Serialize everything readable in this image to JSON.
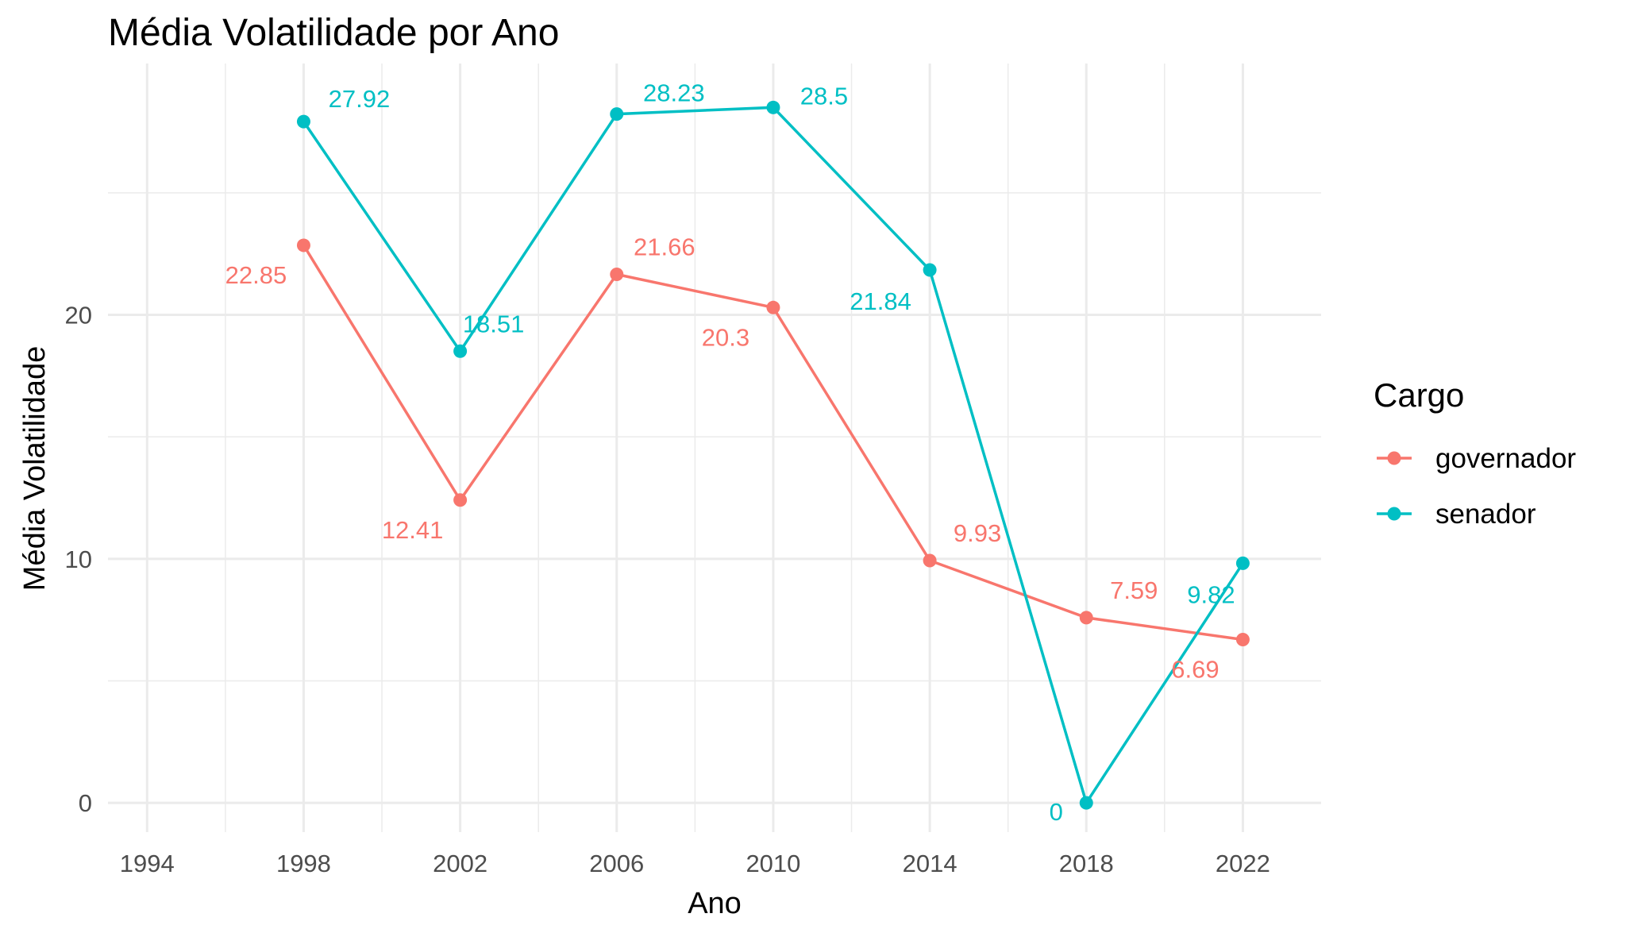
{
  "chart_data": {
    "type": "line",
    "title": "Média Volatilidade por Ano",
    "xlabel": "Ano",
    "ylabel": "Média Volatilidade",
    "x_ticks": [
      "1994",
      "1998",
      "2002",
      "2006",
      "2010",
      "2014",
      "2018",
      "2022"
    ],
    "y_ticks": [
      "0",
      "10",
      "20"
    ],
    "xlim": [
      1993,
      2024
    ],
    "ylim": [
      -1.2,
      30.3
    ],
    "grid": true,
    "legend": {
      "title": "Cargo",
      "placement": "right"
    },
    "series": [
      {
        "name": "governador",
        "color": "#F8766D",
        "x": [
          1998,
          2002,
          2006,
          2010,
          2014,
          2018,
          2022
        ],
        "values": [
          22.85,
          12.41,
          21.66,
          20.3,
          9.93,
          7.59,
          6.69
        ],
        "labels": [
          "22.85",
          "12.41",
          "21.66",
          "20.3",
          "9.93",
          "7.59",
          "6.69"
        ]
      },
      {
        "name": "senador",
        "color": "#00BFC4",
        "x": [
          1998,
          2002,
          2006,
          2010,
          2014,
          2018,
          2022
        ],
        "values": [
          27.92,
          18.51,
          28.23,
          28.5,
          21.84,
          0,
          9.82
        ],
        "labels": [
          "27.92",
          "18.51",
          "28.23",
          "28.5",
          "21.84",
          "0",
          "9.82"
        ]
      }
    ]
  }
}
